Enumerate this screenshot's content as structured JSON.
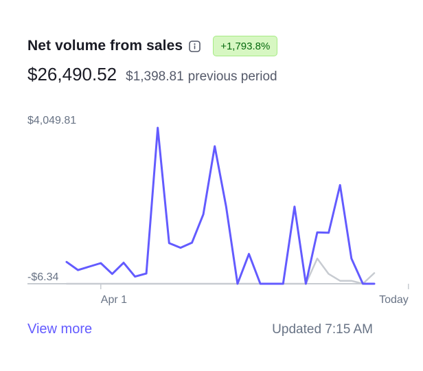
{
  "header": {
    "title": "Net volume from sales",
    "info_icon": "info-icon",
    "change_badge": "+1,793.8%"
  },
  "summary": {
    "amount": "$26,490.52",
    "previous_amount": "$1,398.81",
    "previous_label": "previous period"
  },
  "colors": {
    "current_series": "#635bff",
    "previous_series": "#c7cbd1",
    "baseline": "#c7cbd1",
    "badge_bg": "#d7f7c2",
    "badge_text": "#05690d"
  },
  "chart_data": {
    "type": "line",
    "y_tick_labels": [
      "$4,049.81",
      "-$6.34"
    ],
    "ylim": [
      -6.34,
      4049.81
    ],
    "x_tick_labels": [
      "Apr 1",
      "Today"
    ],
    "x_tick_positions": [
      3,
      30
    ],
    "series": [
      {
        "values": [
          560,
          350,
          440,
          530,
          250,
          540,
          180,
          260,
          4049.81,
          1050,
          930,
          1060,
          1800,
          3570,
          2000,
          -6.34,
          770,
          -6.34,
          -6.34,
          -6.34,
          2000,
          -6.34,
          1330,
          1320,
          2560,
          650,
          -6.34,
          -6.34
        ]
      },
      {
        "values": [
          -6.34,
          -6.34,
          -6.34,
          -6.34,
          -6.34,
          -6.34,
          -6.34,
          -6.34,
          -6.34,
          -6.34,
          -6.34,
          -6.34,
          -6.34,
          -6.34,
          -6.34,
          -6.34,
          -6.34,
          -6.34,
          -6.34,
          -6.34,
          -6.34,
          -6.34,
          650,
          250,
          70,
          70,
          -6.34,
          270
        ]
      }
    ],
    "grid": false,
    "legend": "none"
  },
  "footer": {
    "view_more_label": "View more",
    "updated_text": "Updated 7:15 AM"
  }
}
